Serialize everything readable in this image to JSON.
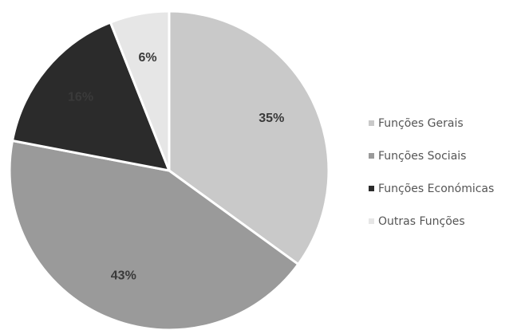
{
  "chart_data": {
    "type": "pie",
    "title": "",
    "categories": [
      "Funções Gerais",
      "Funções Sociais",
      "Funções Económicas",
      "Outras Funções"
    ],
    "values": [
      35,
      43,
      16,
      6
    ],
    "value_labels": [
      "35%",
      "43%",
      "16%",
      "6%"
    ],
    "colors": [
      "#c9c9c9",
      "#9a9a9a",
      "#2b2b2b",
      "#e6e6e6"
    ],
    "start_angle_deg": 0,
    "direction": "clockwise",
    "legend_position": "right",
    "label_color": "#3a3a3a"
  }
}
